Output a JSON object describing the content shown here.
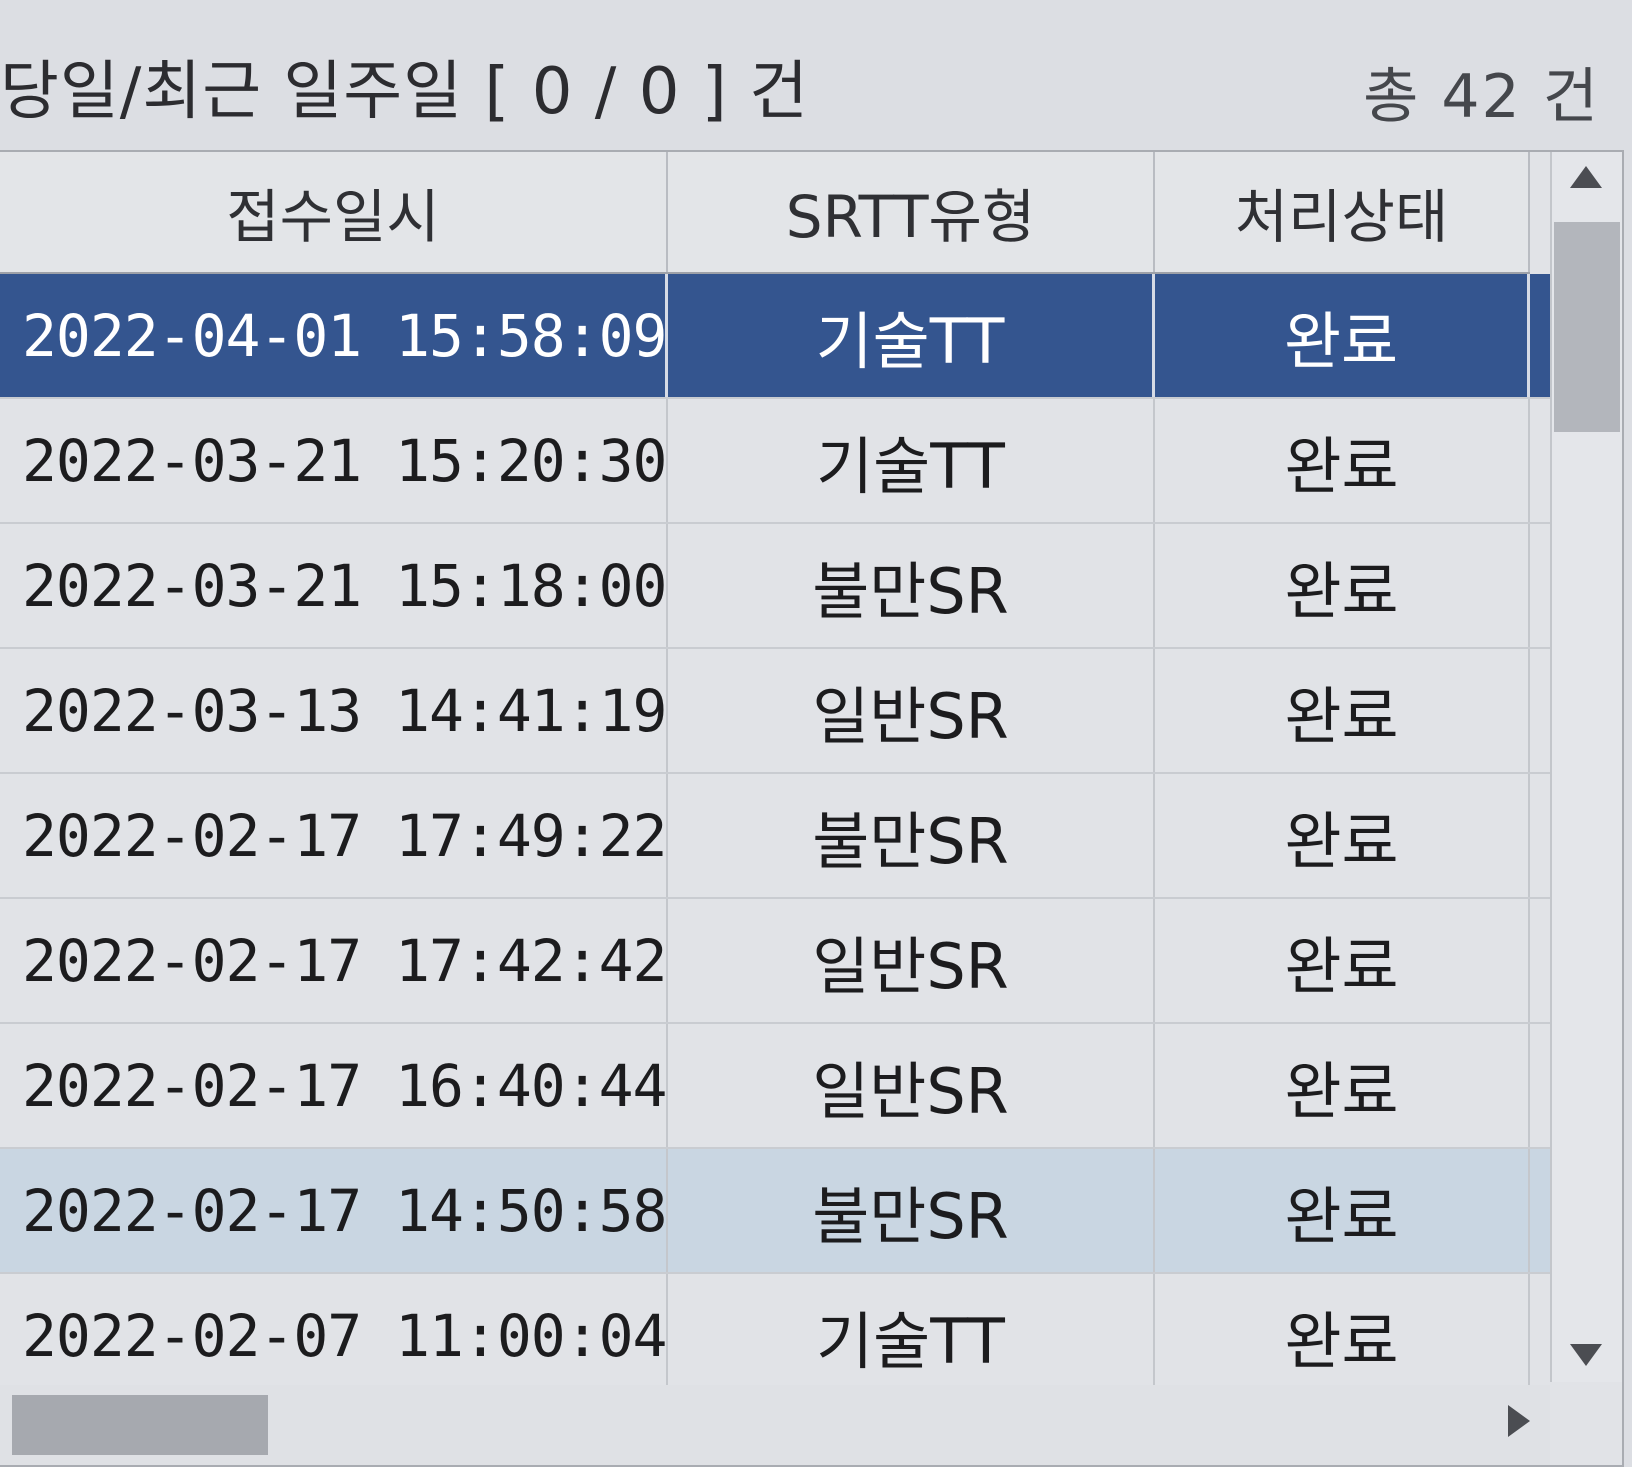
{
  "summary": {
    "recent_label": "당일/최근 일주일 [ 0 / 0 ] 건",
    "total_label": "총 42 건"
  },
  "table": {
    "columns": [
      "접수일시",
      "SRTT유형",
      "처리상태"
    ],
    "rows": [
      {
        "datetime": "2022-04-01 15:58:09",
        "type": "기술TT",
        "status": "완료"
      },
      {
        "datetime": "2022-03-21 15:20:30",
        "type": "기술TT",
        "status": "완료"
      },
      {
        "datetime": "2022-03-21 15:18:00",
        "type": "불만SR",
        "status": "완료"
      },
      {
        "datetime": "2022-03-13 14:41:19",
        "type": "일반SR",
        "status": "완료"
      },
      {
        "datetime": "2022-02-17 17:49:22",
        "type": "불만SR",
        "status": "완료"
      },
      {
        "datetime": "2022-02-17 17:42:42",
        "type": "일반SR",
        "status": "완료"
      },
      {
        "datetime": "2022-02-17 16:40:44",
        "type": "일반SR",
        "status": "완료"
      },
      {
        "datetime": "2022-02-17 14:50:58",
        "type": "불만SR",
        "status": "완료"
      },
      {
        "datetime": "2022-02-07 11:00:04",
        "type": "기술TT",
        "status": "완료"
      }
    ]
  },
  "colors": {
    "selected_row": "#34558f",
    "hover_row": "#c9d6e2",
    "background": "#dcdee3"
  },
  "icons": {
    "scroll_up": "triangle-up-icon",
    "scroll_down": "triangle-down-icon",
    "scroll_right": "triangle-right-icon"
  }
}
